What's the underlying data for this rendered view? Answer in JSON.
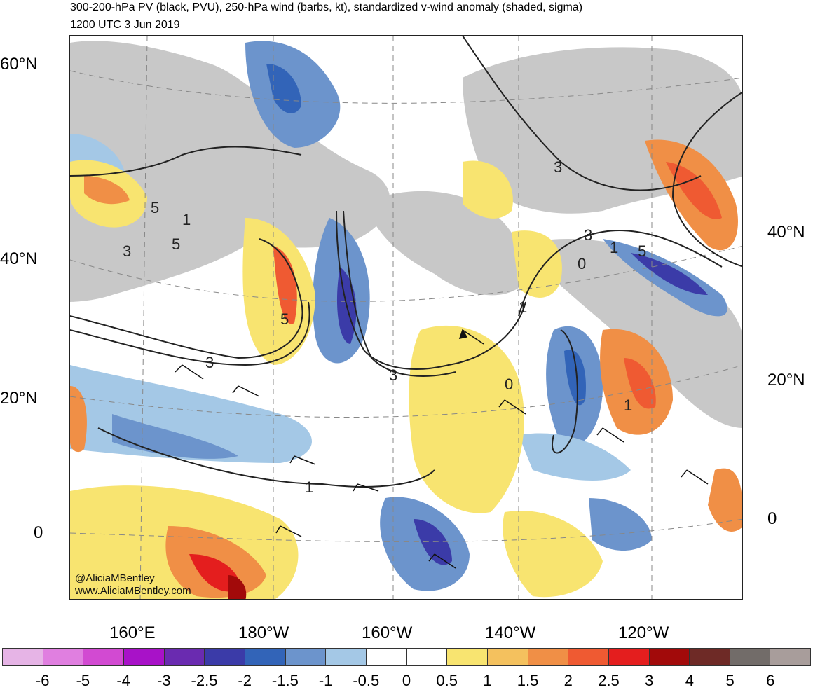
{
  "title": {
    "line1": "300-200-hPa PV (black, PVU), 250-hPa wind (barbs, kt), standardized v-wind anomaly (shaded, sigma)",
    "line2": "1200 UTC 3 Jun 2019"
  },
  "lat_labels_left": [
    "60°N",
    "40°N",
    "20°N",
    "0"
  ],
  "lat_labels_right": [
    "40°N",
    "20°N",
    "0"
  ],
  "lon_labels": [
    "160°E",
    "180°W",
    "160°W",
    "140°W",
    "120°W"
  ],
  "pv_contour_labels": [
    "5",
    "3",
    "5",
    "5",
    "3",
    "3",
    "1",
    "3",
    "0",
    "3",
    "5",
    "1",
    "0",
    "1",
    "1",
    "1"
  ],
  "credit": {
    "handle": "@AliciaMBentley",
    "site": "www.AliciaMBentley.com"
  },
  "colorbar": {
    "colors": [
      "#e6b4e6",
      "#e07fe0",
      "#d24ad2",
      "#a812c8",
      "#6a2bb0",
      "#3b3ba8",
      "#3264b8",
      "#6c94cc",
      "#a4c8e6",
      "#ffffff",
      "#ffffff",
      "#f8e470",
      "#f4c15e",
      "#f08f46",
      "#ef5a32",
      "#e41e1e",
      "#a20a0a",
      "#6e2a26",
      "#726c69",
      "#a89d9b"
    ],
    "labels": [
      "-6",
      "-5",
      "-4",
      "-3",
      "-2.5",
      "-2",
      "-1.5",
      "-1",
      "-0.5",
      "0",
      "0.5",
      "1",
      "1.5",
      "2",
      "2.5",
      "3",
      "4",
      "5",
      "6"
    ]
  },
  "palette": {
    "grey_pv": "#c8c8c8",
    "yellow": "#f8e470",
    "orange": "#f4c15e",
    "darkorange": "#f08f46",
    "red": "#ef5a32",
    "blue_light": "#a4c8e6",
    "blue_mid": "#6c94cc",
    "blue_dark": "#3264b8",
    "blue_deep": "#3b3ba8"
  }
}
